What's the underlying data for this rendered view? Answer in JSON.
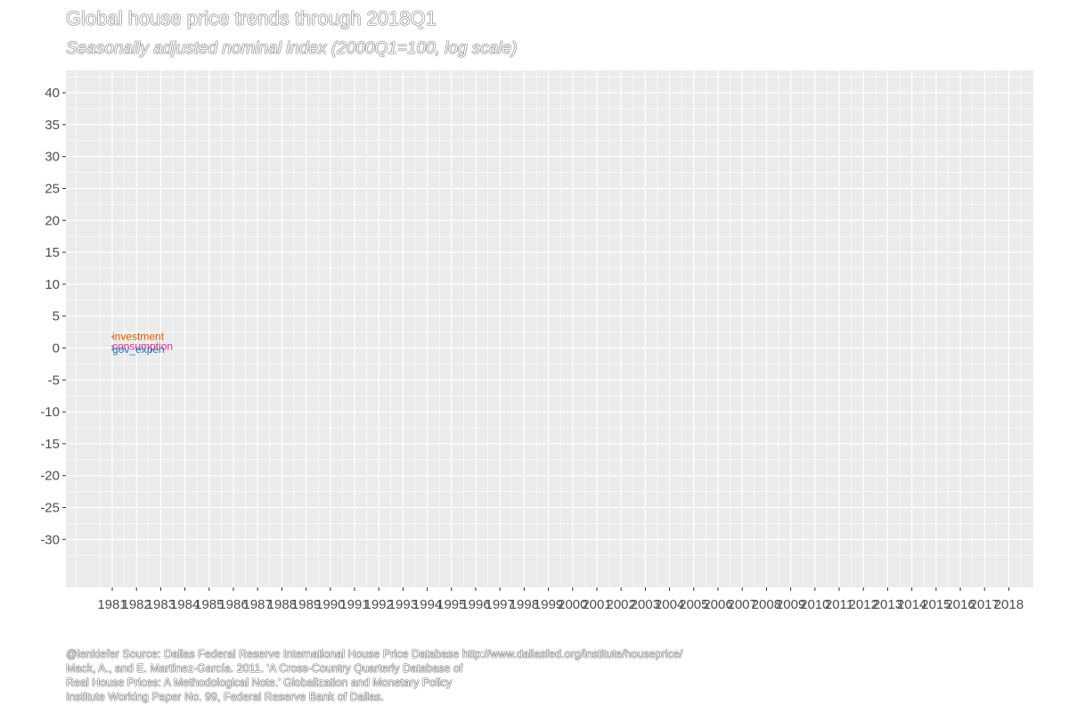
{
  "chart_data": {
    "type": "line",
    "title": "Global house price trends through 2018Q1",
    "subtitle": "Seasonally adjusted nominal index (2000Q1=100, log scale)",
    "xlabel": "",
    "ylabel": "",
    "x_tick_labels": [
      "1981",
      "1982",
      "1983",
      "1984",
      "1985",
      "1986",
      "1987",
      "1988",
      "1989",
      "1990",
      "1991",
      "1992",
      "1993",
      "1994",
      "1995",
      "1996",
      "1997",
      "1998",
      "1999",
      "2000",
      "2001",
      "2002",
      "2003",
      "2004",
      "2005",
      "2006",
      "2007",
      "2008",
      "2009",
      "2010",
      "2011",
      "2012",
      "2013",
      "2014",
      "2015",
      "2016",
      "2017",
      "2018"
    ],
    "y_ticks": [
      40,
      35,
      30,
      25,
      20,
      15,
      10,
      5,
      0,
      -5,
      -10,
      -15,
      -20,
      -25,
      -30
    ],
    "ylim": [
      -37.5,
      43.5
    ],
    "grid": true,
    "background": "#ebebeb",
    "series": [
      {
        "name": "investment",
        "color": "#d95f02",
        "x": [
          1981
        ],
        "y": [
          1.8
        ]
      },
      {
        "name": "consumption",
        "color": "#e7298a",
        "x": [
          1981
        ],
        "y": [
          0.3
        ]
      },
      {
        "name": "gov_expen",
        "color": "#1f78b4",
        "x": [
          1981
        ],
        "y": [
          -0.2
        ]
      }
    ],
    "caption": [
      "@lenkiefer Source: Dallas Federal Reserve International House Price Database  http://www.dallasfed.org/institute/houseprice/",
      "Mack, A., and E. Martínez-García. 2011. 'A Cross-Country Quarterly Database of",
      "Real House Prices: A Methodological Note.' Globalization and Monetary Policy",
      "Institute Working Paper No. 99, Federal Reserve Bank of Dallas."
    ]
  }
}
